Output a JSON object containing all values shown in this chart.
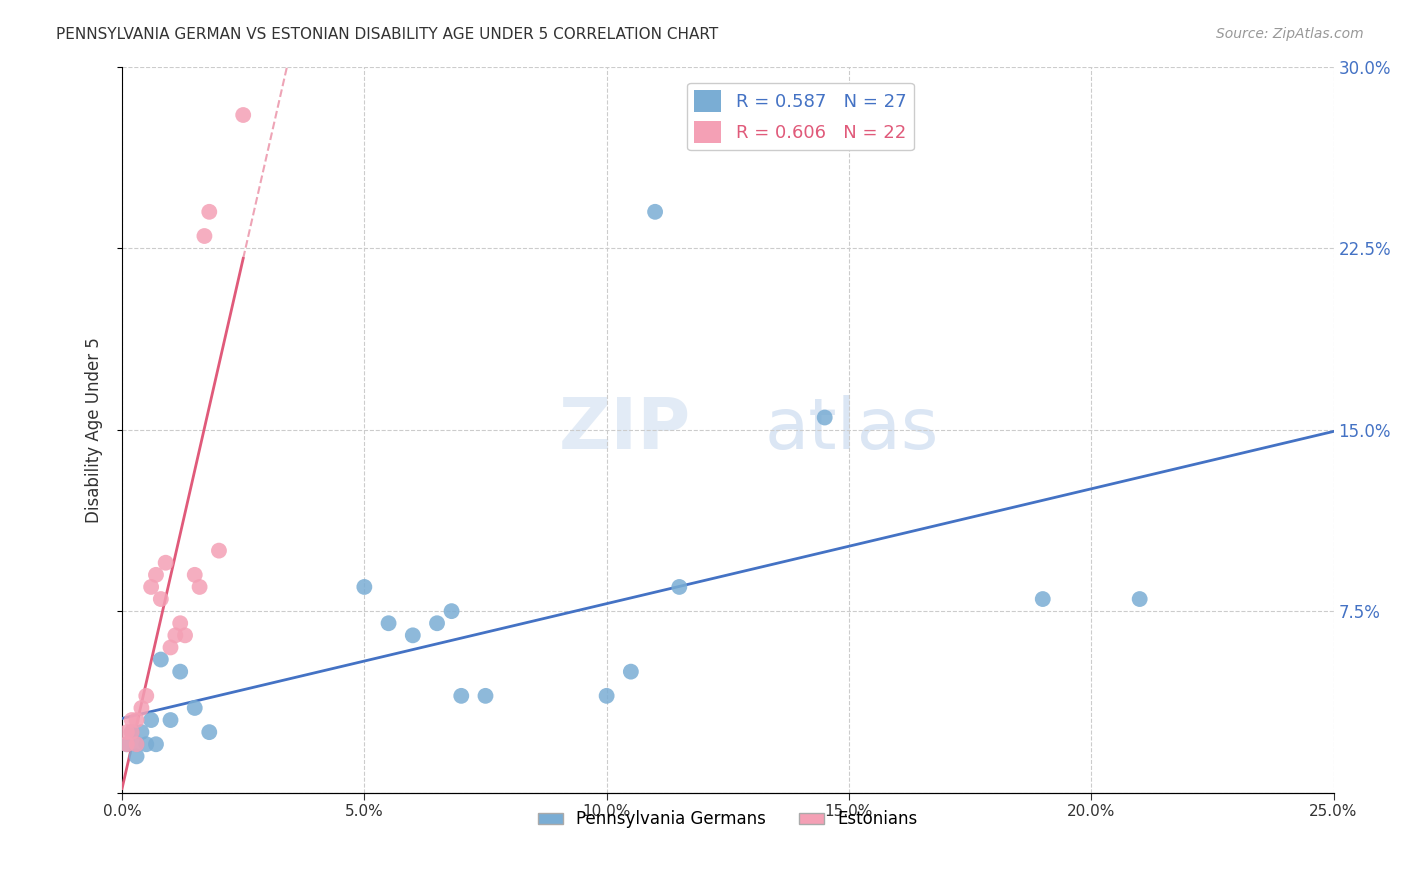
{
  "title": "PENNSYLVANIA GERMAN VS ESTONIAN DISABILITY AGE UNDER 5 CORRELATION CHART",
  "source": "Source: ZipAtlas.com",
  "ylabel": "Disability Age Under 5",
  "xlim": [
    0.0,
    0.25
  ],
  "ylim": [
    0.0,
    0.3
  ],
  "yticks": [
    0.0,
    0.075,
    0.15,
    0.225,
    0.3
  ],
  "xticks": [
    0.0,
    0.05,
    0.1,
    0.15,
    0.2,
    0.25
  ],
  "grid_color": "#cccccc",
  "bg_color": "#ffffff",
  "pa_german_color": "#7aadd4",
  "estonian_color": "#f4a0b5",
  "pa_line_color": "#4472c4",
  "estonian_line_color": "#e05a7a",
  "pa_R": 0.587,
  "pa_N": 27,
  "estonian_R": 0.606,
  "estonian_N": 22,
  "watermark_zip": "ZIP",
  "watermark_atlas": "atlas",
  "legend_pa": "Pennsylvania Germans",
  "legend_est": "Estonians",
  "pa_german_x": [
    0.001,
    0.002,
    0.003,
    0.003,
    0.004,
    0.005,
    0.006,
    0.007,
    0.008,
    0.01,
    0.012,
    0.015,
    0.018,
    0.05,
    0.055,
    0.06,
    0.065,
    0.068,
    0.07,
    0.075,
    0.1,
    0.105,
    0.11,
    0.115,
    0.145,
    0.19,
    0.21
  ],
  "pa_german_y": [
    0.02,
    0.025,
    0.02,
    0.015,
    0.025,
    0.02,
    0.03,
    0.02,
    0.055,
    0.03,
    0.05,
    0.035,
    0.025,
    0.085,
    0.07,
    0.065,
    0.07,
    0.075,
    0.04,
    0.04,
    0.04,
    0.05,
    0.24,
    0.085,
    0.155,
    0.08,
    0.08
  ],
  "estonian_x": [
    0.001,
    0.001,
    0.002,
    0.002,
    0.003,
    0.003,
    0.004,
    0.005,
    0.006,
    0.007,
    0.008,
    0.009,
    0.01,
    0.011,
    0.012,
    0.013,
    0.015,
    0.016,
    0.017,
    0.018,
    0.02,
    0.025
  ],
  "estonian_y": [
    0.02,
    0.025,
    0.03,
    0.025,
    0.02,
    0.03,
    0.035,
    0.04,
    0.085,
    0.09,
    0.08,
    0.095,
    0.06,
    0.065,
    0.07,
    0.065,
    0.09,
    0.085,
    0.23,
    0.24,
    0.1,
    0.28
  ]
}
